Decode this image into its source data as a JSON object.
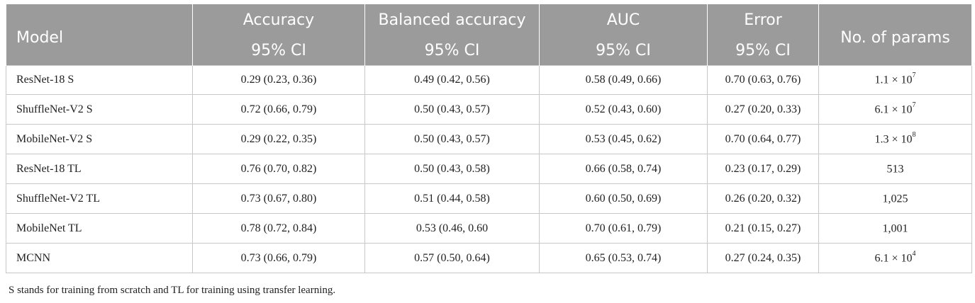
{
  "table": {
    "headers": {
      "model": "Model",
      "accuracy": "Accuracy",
      "balanced_accuracy": "Balanced accuracy",
      "auc": "AUC",
      "error": "Error",
      "params": "No. of params",
      "ci": "95% CI"
    },
    "rows": [
      {
        "model": "ResNet-18 S",
        "accuracy": "0.29 (0.23, 0.36)",
        "balanced": "0.49 (0.42, 0.56)",
        "auc": "0.58 (0.49, 0.66)",
        "error": "0.70 (0.63, 0.76)",
        "params_base": "1.1 × 10",
        "params_exp": "7"
      },
      {
        "model": "ShuffleNet-V2 S",
        "accuracy": "0.72 (0.66, 0.79)",
        "balanced": "0.50 (0.43, 0.57)",
        "auc": "0.52 (0.43, 0.60)",
        "error": "0.27 (0.20, 0.33)",
        "params_base": "6.1 × 10",
        "params_exp": "7"
      },
      {
        "model": "MobileNet-V2 S",
        "accuracy": "0.29 (0.22, 0.35)",
        "balanced": "0.50 (0.43, 0.57)",
        "auc": "0.53 (0.45, 0.62)",
        "error": "0.70 (0.64, 0.77)",
        "params_base": "1.3 × 10",
        "params_exp": "8"
      },
      {
        "model": "ResNet-18 TL",
        "accuracy": "0.76 (0.70, 0.82)",
        "balanced": "0.50 (0.43, 0.58)",
        "auc": "0.66 (0.58, 0.74)",
        "error": "0.23 (0.17, 0.29)",
        "params_base": "513",
        "params_exp": ""
      },
      {
        "model": "ShuffleNet-V2 TL",
        "accuracy": "0.73 (0.67, 0.80)",
        "balanced": "0.51 (0.44, 0.58)",
        "auc": "0.60 (0.50, 0.69)",
        "error": "0.26 (0.20, 0.32)",
        "params_base": "1,025",
        "params_exp": ""
      },
      {
        "model": "MobileNet TL",
        "accuracy": "0.78 (0.72, 0.84)",
        "balanced": "0.53 (0.46, 0.60",
        "auc": "0.70 (0.61, 0.79)",
        "error": "0.21 (0.15, 0.27)",
        "params_base": "1,001",
        "params_exp": ""
      },
      {
        "model": "MCNN",
        "accuracy": "0.73 (0.66, 0.79)",
        "balanced": "0.57 (0.50, 0.64)",
        "auc": "0.65 (0.53, 0.74)",
        "error": "0.27 (0.24, 0.35)",
        "params_base": "6.1 × 10",
        "params_exp": "4"
      }
    ]
  },
  "footnote": "S stands for training from scratch and TL for training using transfer learning.",
  "colors": {
    "header_bg": "#9b9b9b",
    "header_text": "#ffffff",
    "grid": "#c8c8c8"
  }
}
